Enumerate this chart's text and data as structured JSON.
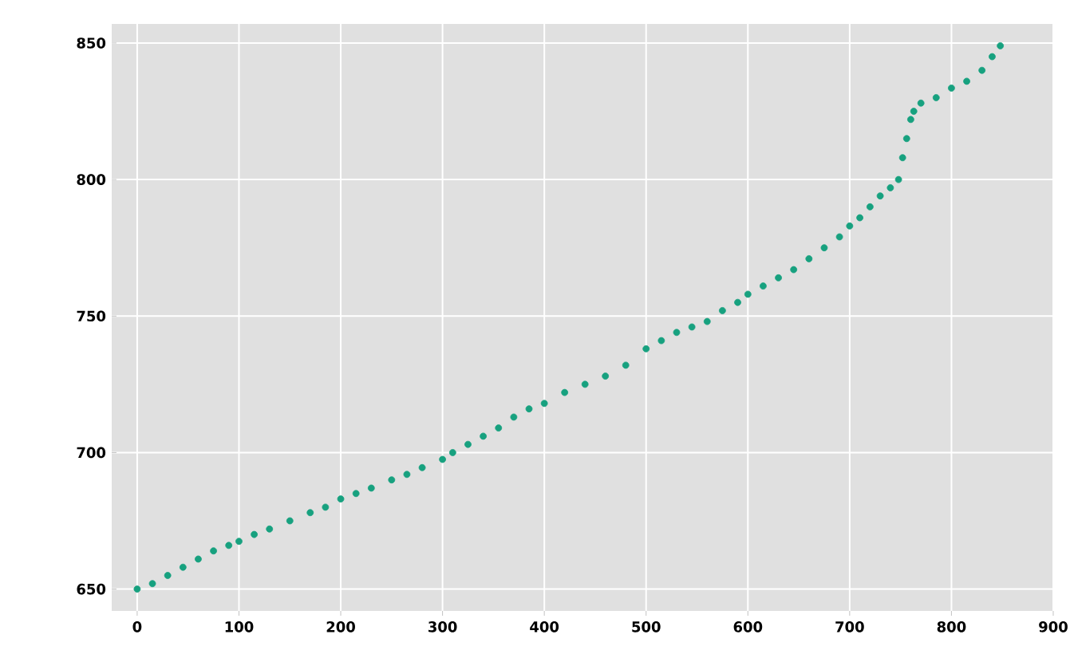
{
  "chart_data": {
    "type": "scatter",
    "marker": "circle",
    "grid": true,
    "xlim": [
      -25,
      900
    ],
    "ylim": [
      642,
      857
    ],
    "xticks": [
      0,
      100,
      200,
      300,
      400,
      500,
      600,
      700,
      800,
      900
    ],
    "yticks": [
      650,
      700,
      750,
      800,
      850
    ],
    "series": [
      {
        "color": "#17a17f",
        "x": [
          0,
          15,
          30,
          45,
          60,
          75,
          90,
          100,
          115,
          130,
          150,
          170,
          185,
          200,
          215,
          230,
          250,
          265,
          280,
          300,
          310,
          325,
          340,
          355,
          370,
          385,
          400,
          420,
          440,
          460,
          480,
          500,
          515,
          530,
          545,
          560,
          575,
          590,
          600,
          615,
          630,
          645,
          660,
          675,
          690,
          700,
          710,
          720,
          730,
          740,
          748,
          752,
          756,
          760,
          763,
          770,
          785,
          800,
          815,
          830,
          840,
          848
        ],
        "values": [
          650,
          652,
          655,
          658,
          661,
          664,
          666,
          667.5,
          670,
          672,
          675,
          678,
          680,
          683,
          685,
          687,
          690,
          692,
          694.5,
          697.5,
          700,
          703,
          706,
          709,
          713,
          716,
          718,
          722,
          725,
          728,
          732,
          738,
          741,
          744,
          746,
          748,
          752,
          755,
          758,
          761,
          764,
          767,
          771,
          775,
          779,
          783,
          786,
          790,
          794,
          797,
          800,
          808,
          815,
          822,
          825,
          828,
          830,
          833.5,
          836,
          840,
          845,
          849
        ]
      }
    ]
  }
}
